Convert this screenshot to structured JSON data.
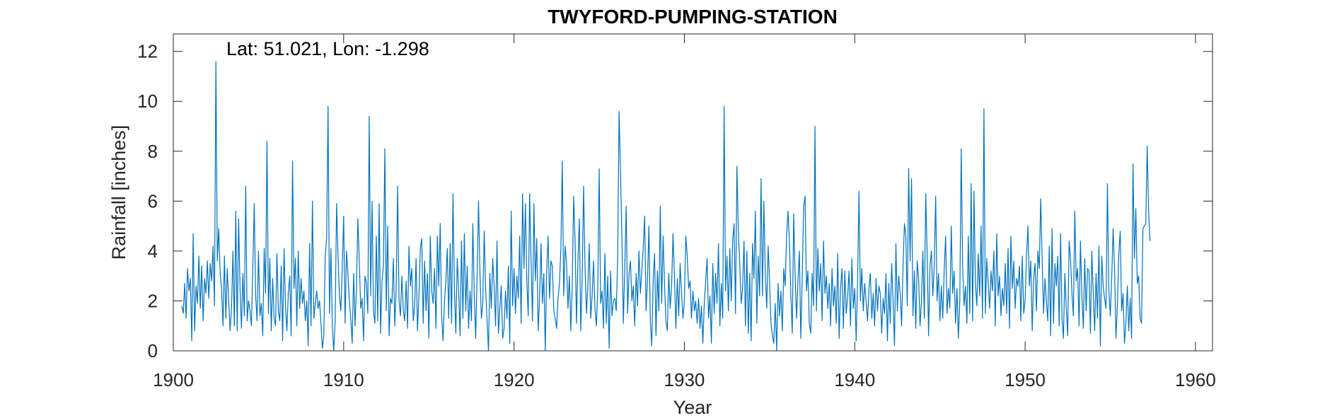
{
  "chart_data": {
    "type": "line",
    "title": "TWYFORD-PUMPING-STATION",
    "xlabel": "Year",
    "ylabel": "Rainfall [inches]",
    "annotation": "Lat: 51.021, Lon: -1.298",
    "xlim": [
      1900,
      1961
    ],
    "ylim": [
      0,
      12.7
    ],
    "xticks": [
      1900,
      1910,
      1920,
      1930,
      1940,
      1950,
      1960
    ],
    "yticks": [
      0,
      2,
      4,
      6,
      8,
      10,
      12
    ],
    "grid": false,
    "line_color": "#0072BD",
    "series": [
      {
        "x_start": 1900.5,
        "x_step": 0.0833333,
        "values": [
          1.8,
          1.5,
          2.7,
          1.3,
          3.3,
          2.4,
          2.9,
          0.4,
          4.7,
          0.8,
          2.6,
          1.9,
          3.8,
          1.7,
          3.4,
          1.2,
          2.9,
          2.3,
          3.6,
          2.1,
          3.5,
          2.8,
          4.2,
          1.8,
          11.6,
          3.6,
          4.9,
          3.1,
          2.5,
          1.0,
          3.8,
          1.3,
          3.3,
          2.0,
          0.8,
          1.7,
          4.0,
          1.0,
          5.6,
          0.8,
          5.3,
          2.5,
          0.9,
          3.1,
          1.4,
          6.6,
          1.2,
          2.0,
          1.6,
          1.0,
          3.3,
          5.9,
          2.2,
          1.2,
          4.0,
          1.4,
          1.9,
          0.6,
          4.1,
          2.3,
          8.4,
          1.5,
          3.7,
          0.8,
          2.9,
          1.3,
          1.0,
          3.9,
          1.6,
          1.2,
          3.4,
          0.4,
          4.1,
          1.8,
          0.8,
          2.3,
          3.0,
          0.6,
          7.6,
          2.5,
          3.7,
          1.0,
          4.0,
          1.7,
          2.9,
          1.9,
          2.4,
          1.2,
          2.0,
          0.2,
          4.3,
          1.0,
          6.0,
          1.3,
          1.9,
          2.4,
          1.7,
          2.0,
          1.1,
          0.1,
          0.6,
          3.8,
          4.5,
          9.8,
          1.5,
          4.1,
          1.0,
          0.0,
          1.2,
          5.9,
          3.9,
          2.2,
          1.6,
          3.3,
          5.4,
          1.1,
          4.0,
          3.1,
          2.0,
          1.3,
          0.3,
          3.1,
          1.0,
          2.5,
          5.3,
          3.6,
          1.7,
          2.1,
          0.4,
          3.0,
          2.7,
          1.5,
          9.4,
          2.2,
          6.0,
          1.6,
          1.1,
          4.6,
          1.2,
          5.9,
          0.7,
          2.8,
          3.4,
          8.1,
          1.6,
          5.0,
          0.6,
          2.1,
          1.9,
          3.7,
          1.0,
          2.5,
          6.6,
          2.0,
          1.4,
          3.0,
          1.6,
          1.2,
          2.8,
          0.9,
          4.2,
          2.6,
          3.3,
          1.2,
          1.8,
          3.7,
          0.8,
          2.2,
          4.1,
          4.5,
          1.1,
          3.6,
          1.6,
          3.1,
          0.5,
          4.6,
          2.4,
          1.9,
          3.3,
          0.9,
          4.6,
          2.6,
          5.1,
          1.4,
          0.4,
          2.0,
          2.8,
          4.1,
          1.3,
          4.3,
          1.1,
          6.3,
          2.5,
          0.7,
          3.7,
          2.4,
          0.6,
          4.4,
          1.3,
          4.7,
          1.6,
          3.4,
          0.9,
          2.4,
          1.2,
          5.1,
          2.2,
          0.5,
          3.0,
          6.0,
          3.1,
          1.3,
          1.9,
          4.8,
          2.5,
          1.2,
          0.0,
          3.1,
          1.7,
          3.7,
          2.6,
          1.0,
          4.4,
          0.7,
          1.7,
          2.6,
          0.5,
          0.9,
          2.4,
          1.3,
          3.4,
          0.3,
          5.6,
          1.8,
          3.3,
          1.5,
          3.0,
          2.1,
          4.6,
          1.1,
          6.3,
          3.3,
          5.9,
          2.8,
          1.4,
          6.3,
          3.6,
          1.2,
          5.9,
          2.8,
          4.5,
          0.8,
          2.1,
          4.3,
          1.9,
          3.1,
          0.0,
          3.2,
          4.6,
          2.1,
          3.6,
          3.4,
          1.6,
          1.3,
          0.9,
          2.1,
          2.7,
          4.1,
          7.6,
          2.2,
          4.2,
          3.5,
          1.7,
          3.0,
          0.8,
          2.6,
          6.2,
          4.4,
          1.1,
          3.6,
          5.3,
          0.8,
          2.9,
          6.6,
          3.4,
          1.5,
          2.6,
          4.3,
          1.3,
          2.2,
          3.6,
          1.7,
          1.0,
          2.5,
          7.3,
          1.9,
          2.4,
          0.9,
          3.9,
          1.1,
          3.0,
          0.1,
          3.2,
          1.4,
          2.0,
          2.1,
          1.6,
          3.7,
          9.6,
          7.2,
          4.5,
          1.1,
          3.3,
          5.8,
          1.5,
          3.1,
          3.6,
          2.0,
          2.6,
          1.0,
          3.1,
          1.8,
          4.0,
          2.3,
          3.2,
          4.1,
          5.4,
          1.6,
          2.8,
          5.0,
          1.2,
          0.2,
          2.8,
          3.9,
          0.6,
          3.2,
          1.6,
          5.8,
          1.9,
          4.6,
          2.7,
          1.2,
          0.8,
          3.1,
          1.7,
          2.6,
          4.7,
          3.0,
          0.9,
          2.9,
          1.4,
          3.5,
          2.3,
          1.3,
          2.0,
          4.6,
          3.8,
          2.5,
          2.8,
          1.3,
          2.4,
          1.6,
          2.0,
          1.1,
          2.1,
          0.9,
          1.8,
          0.3,
          1.9,
          2.8,
          3.7,
          1.3,
          2.2,
          0.3,
          3.5,
          1.5,
          3.1,
          1.9,
          4.3,
          1.0,
          2.7,
          1.3,
          9.8,
          2.4,
          3.8,
          1.6,
          4.1,
          2.0,
          4.4,
          5.1,
          1.5,
          7.4,
          4.8,
          3.5,
          1.9,
          2.5,
          4.4,
          1.0,
          4.0,
          0.7,
          3.1,
          0.4,
          4.3,
          2.9,
          5.6,
          1.1,
          3.8,
          2.2,
          6.9,
          2.2,
          6.0,
          3.1,
          1.7,
          4.2,
          2.8,
          1.1,
          0.6,
          0.3,
          1.9,
          0.0,
          2.7,
          1.4,
          2.4,
          0.8,
          3.3,
          2.6,
          4.6,
          5.6,
          4.4,
          2.2,
          0.7,
          5.5,
          3.0,
          1.3,
          2.8,
          4.0,
          0.5,
          2.9,
          5.8,
          6.2,
          2.4,
          3.2,
          1.1,
          0.7,
          3.1,
          1.8,
          9.0,
          1.6,
          4.1,
          2.4,
          3.5,
          1.2,
          4.4,
          2.3,
          3.0,
          1.7,
          2.7,
          1.0,
          3.3,
          1.8,
          2.6,
          1.1,
          3.9,
          0.5,
          2.5,
          3.3,
          0.9,
          3.2,
          1.5,
          2.2,
          3.2,
          1.0,
          3.7,
          1.7,
          2.5,
          0.4,
          2.8,
          6.4,
          2.0,
          3.3,
          1.6,
          2.7,
          2.0,
          1.2,
          2.5,
          3.1,
          1.3,
          2.3,
          1.0,
          2.9,
          1.6,
          2.6,
          2.3,
          0.7,
          2.1,
          1.5,
          3.1,
          0.4,
          2.7,
          1.1,
          3.5,
          2.0,
          0.2,
          4.3,
          1.6,
          3.0,
          2.3,
          1.0,
          3.4,
          5.1,
          4.6,
          1.8,
          7.3,
          3.6,
          6.9,
          1.4,
          3.2,
          0.9,
          3.6,
          2.9,
          1.0,
          2.0,
          4.0,
          1.3,
          6.3,
          3.9,
          0.6,
          3.4,
          4.0,
          2.2,
          3.4,
          6.2,
          2.0,
          3.1,
          1.2,
          2.6,
          1.3,
          3.2,
          4.6,
          1.5,
          2.5,
          1.7,
          5.0,
          2.3,
          3.2,
          1.1,
          2.5,
          0.5,
          2.0,
          8.1,
          3.4,
          1.8,
          2.6,
          1.1,
          4.6,
          1.5,
          6.7,
          1.2,
          6.4,
          2.7,
          1.8,
          3.9,
          2.2,
          5.0,
          1.3,
          9.7,
          1.5,
          3.7,
          2.7,
          1.7,
          3.2,
          2.4,
          4.0,
          1.0,
          4.7,
          2.2,
          3.0,
          1.4,
          2.5,
          1.8,
          3.5,
          1.5,
          4.1,
          0.9,
          4.6,
          2.5,
          3.6,
          1.7,
          2.9,
          2.6,
          3.4,
          1.2,
          3.8,
          1.5,
          2.0,
          3.8,
          5.0,
          2.6,
          3.6,
          0.8,
          2.9,
          3.5,
          1.6,
          4.0,
          3.3,
          6.1,
          3.7,
          1.5,
          2.9,
          2.0,
          1.2,
          4.2,
          0.6,
          4.9,
          1.1,
          3.5,
          2.6,
          3.8,
          1.0,
          4.7,
          1.3,
          0.5,
          3.1,
          1.7,
          0.6,
          4.4,
          3.7,
          2.3,
          1.4,
          5.6,
          2.8,
          3.3,
          1.0,
          4.4,
          2.2,
          0.9,
          3.7,
          1.6,
          3.3,
          3.2,
          0.7,
          4.0,
          2.3,
          0.8,
          3.1,
          1.3,
          4.2,
          0.2,
          3.8,
          2.6,
          2.1,
          1.7,
          6.7,
          2.4,
          1.4,
          2.9,
          4.9,
          3.3,
          0.5,
          1.8,
          3.9,
          4.8,
          1.6,
          2.3,
          0.3,
          1.1,
          2.6,
          0.8,
          2.1,
          0.5,
          7.5,
          3.7,
          5.7,
          2.7,
          3.0,
          1.3,
          1.1,
          4.9,
          5.0,
          5.1,
          8.2,
          5.6,
          4.4
        ]
      }
    ]
  }
}
